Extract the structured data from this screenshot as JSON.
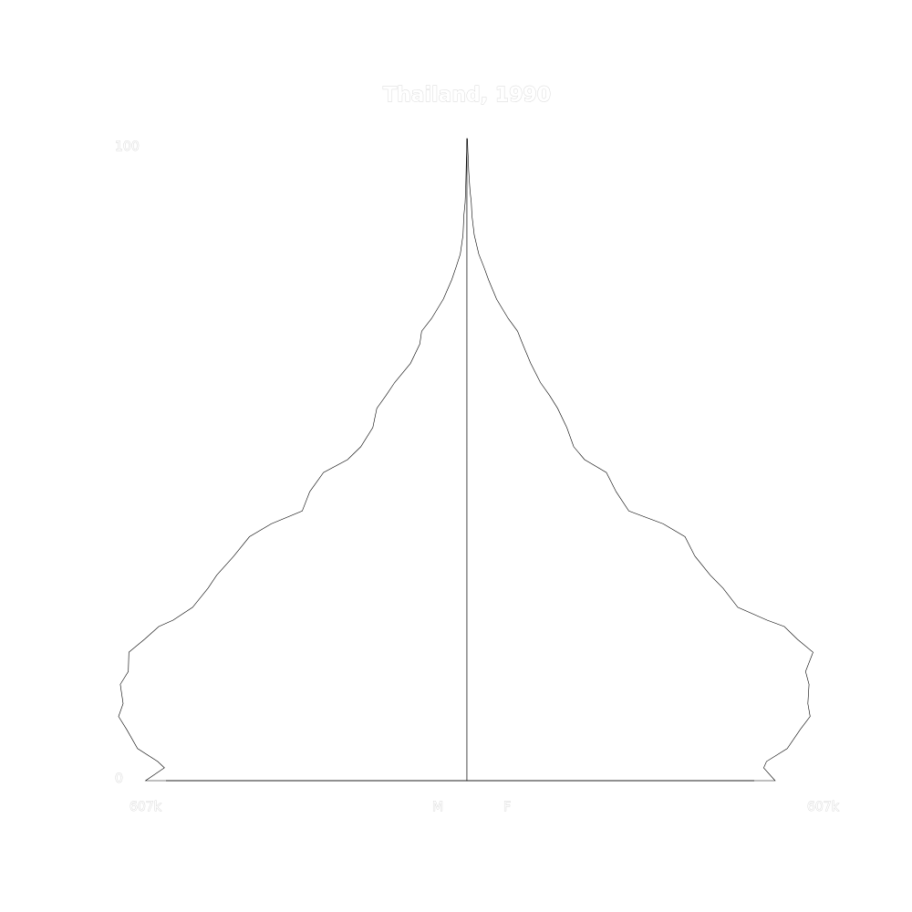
{
  "chart_data": {
    "type": "area",
    "title": "Thailand, 1990",
    "age_axis": {
      "range": [
        0,
        100
      ],
      "tick_labels": [
        "0",
        "100"
      ]
    },
    "population_axis": {
      "max": 607000,
      "left_label": "607k",
      "right_label": "607k"
    },
    "side_labels": {
      "male": "M",
      "female": "F"
    },
    "ages": [
      0,
      2,
      3,
      5,
      8,
      10,
      12,
      15,
      17,
      20,
      22,
      24,
      25,
      27,
      30,
      32,
      35,
      38,
      40,
      42,
      45,
      48,
      50,
      52,
      55,
      58,
      60,
      62,
      65,
      68,
      70,
      72,
      75,
      78,
      80,
      82,
      85,
      88,
      90,
      92,
      95,
      97,
      98,
      100
    ],
    "series": [
      {
        "name": "M",
        "values": [
          560000,
          527000,
          539000,
          574000,
          593000,
          607000,
          599000,
          604000,
          590000,
          589000,
          562000,
          537000,
          512000,
          478000,
          451000,
          436000,
          406000,
          379000,
          341000,
          287000,
          274000,
          250000,
          208000,
          185000,
          164000,
          157000,
          141000,
          126000,
          98300,
          82200,
          79000,
          61500,
          41100,
          26600,
          18900,
          11600,
          6860,
          5390,
          3120,
          2240,
          1400,
          931,
          463,
          276
        ]
      },
      {
        "name": "F",
        "values": [
          537000,
          517000,
          522000,
          558000,
          581000,
          598000,
          594000,
          596000,
          590000,
          603000,
          576000,
          553000,
          523000,
          472000,
          446000,
          424000,
          397000,
          380000,
          342000,
          282000,
          260000,
          243000,
          205000,
          186000,
          174000,
          158000,
          144000,
          128000,
          111000,
          97100,
          88200,
          71900,
          51700,
          37600,
          29600,
          20700,
          12700,
          8720,
          7590,
          5250,
          2960,
          2280,
          1660,
          786
        ]
      }
    ]
  }
}
